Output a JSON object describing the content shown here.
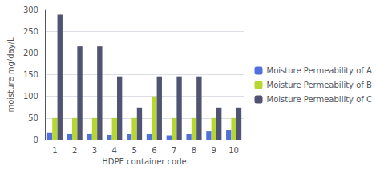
{
  "chart_data": {
    "type": "bar",
    "xlabel": "HDPE container code",
    "ylabel": "moisture mg/day/L",
    "categories": [
      1,
      2,
      3,
      4,
      5,
      6,
      7,
      8,
      9,
      10
    ],
    "series": [
      {
        "name": "Moisture Permeability of A",
        "values": [
          15,
          13,
          13,
          11,
          13,
          13,
          10,
          13,
          20,
          22
        ]
      },
      {
        "name": "Moisture Permeability of B",
        "values": [
          50,
          50,
          50,
          50,
          50,
          100,
          50,
          50,
          50,
          50
        ]
      },
      {
        "name": "Moisture Permeability of C",
        "values": [
          288,
          215,
          215,
          146,
          74,
          146,
          146,
          146,
          74,
          74
        ]
      }
    ],
    "ylim": [
      0,
      300
    ],
    "yticks": [
      0,
      50,
      100,
      150,
      200,
      250,
      300
    ],
    "grid": true,
    "legend": "right"
  }
}
